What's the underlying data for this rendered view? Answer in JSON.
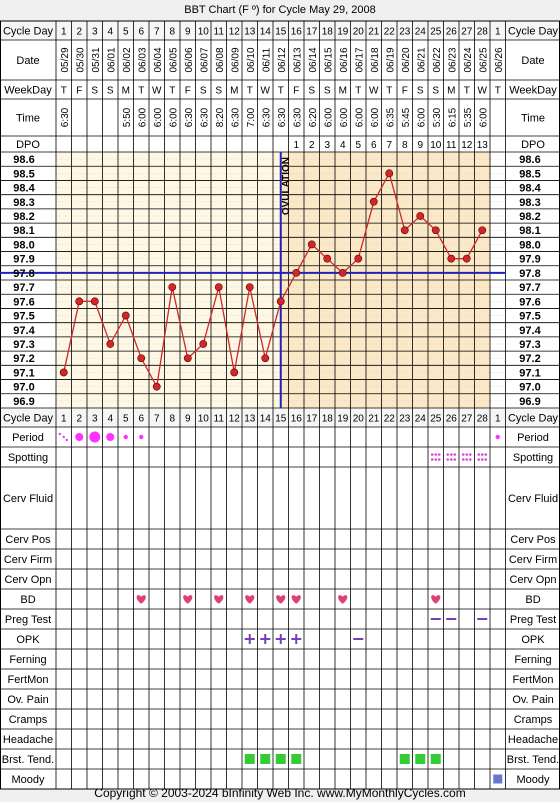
{
  "title": "BBT Chart (F º) for Cycle May 29, 2008",
  "footer": "Copyright © 2003-2024 bInfinity Web Inc.    www.MyMonthlyCycles.com",
  "colors": {
    "bg": "#f0f0f0",
    "grid": "#000000",
    "preOvulation": "#fdf7e3",
    "postOvulation": "#fbe8c6",
    "line": "#d0282a",
    "coverline": "#2222bb",
    "ovulationLine": "#2222bb",
    "period": "#ff33ff",
    "spotting": "#dd44dd",
    "heart": "#e0407a",
    "preg": "#7a3fb8",
    "opk": "#7a3fb8",
    "green": "#33cc33",
    "moody": "#6677cc"
  },
  "labels": {
    "cycle_day": "Cycle Day",
    "date": "Date",
    "weekday": "WeekDay",
    "time": "Time",
    "dpo": "DPO",
    "ovulation": "OVULATION",
    "period": "Period",
    "spotting": "Spotting",
    "cerv_fluid": "Cerv Fluid",
    "cerv_pos": "Cerv Pos",
    "cerv_firm": "Cerv Firm",
    "cerv_opn": "Cerv Opn",
    "bd": "BD",
    "preg_test": "Preg Test",
    "opk": "OPK",
    "ferning": "Ferning",
    "fertmon": "FertMon",
    "ov_pain": "Ov. Pain",
    "cramps": "Cramps",
    "headache": "Headache",
    "brst_tend": "Brst. Tend.",
    "moody": "Moody"
  },
  "cycle_days": [
    1,
    2,
    3,
    4,
    5,
    6,
    7,
    8,
    9,
    10,
    11,
    12,
    13,
    14,
    15,
    16,
    17,
    18,
    19,
    20,
    21,
    22,
    23,
    24,
    25,
    26,
    27,
    28,
    1
  ],
  "dates": [
    "05/29",
    "05/30",
    "05/31",
    "06/01",
    "06/02",
    "06/03",
    "06/04",
    "06/05",
    "06/06",
    "06/07",
    "06/08",
    "06/09",
    "06/10",
    "06/11",
    "06/12",
    "06/13",
    "06/14",
    "06/15",
    "06/16",
    "06/17",
    "06/18",
    "06/19",
    "06/20",
    "06/21",
    "06/22",
    "06/23",
    "06/24",
    "06/25",
    "06/26"
  ],
  "weekdays": [
    "T",
    "F",
    "S",
    "S",
    "M",
    "T",
    "W",
    "T",
    "F",
    "S",
    "S",
    "M",
    "T",
    "W",
    "T",
    "F",
    "S",
    "S",
    "M",
    "T",
    "W",
    "T",
    "F",
    "S",
    "S",
    "M",
    "T",
    "W",
    "T"
  ],
  "times": [
    "6:30",
    "",
    "",
    "",
    "5:50",
    "6:00",
    "6:00",
    "6:00",
    "6:30",
    "6:30",
    "8:20",
    "6:30",
    "7:00",
    "6:30",
    "6:30",
    "6:30",
    "6:20",
    "6:00",
    "6:00",
    "6:00",
    "6:00",
    "6:35",
    "5:45",
    "6:00",
    "5:30",
    "6:15",
    "5:35",
    "6:00",
    ""
  ],
  "dpo": [
    "",
    "",
    "",
    "",
    "",
    "",
    "",
    "",
    "",
    "",
    "",
    "",
    "",
    "",
    "",
    "1",
    "2",
    "3",
    "4",
    "5",
    "6",
    "7",
    "8",
    "9",
    "10",
    "11",
    "12",
    "13",
    ""
  ],
  "temp_axis": [
    "98.6",
    "98.5",
    "98.4",
    "98.3",
    "98.2",
    "98.1",
    "98.0",
    "97.9",
    "97.8",
    "97.7",
    "97.6",
    "97.5",
    "97.4",
    "97.3",
    "97.2",
    "97.1",
    "97.0",
    "96.9"
  ],
  "chart_data": {
    "type": "line",
    "title": "BBT Chart (F º) for Cycle May 29, 2008",
    "xlabel": "Cycle Day",
    "ylabel": "",
    "ylim": [
      96.9,
      98.6
    ],
    "x": [
      1,
      2,
      3,
      4,
      5,
      6,
      7,
      8,
      9,
      10,
      11,
      12,
      13,
      14,
      15,
      16,
      17,
      18,
      19,
      20,
      21,
      22,
      23,
      24,
      25,
      26,
      27,
      28
    ],
    "series": [
      {
        "values": [
          97.1,
          97.6,
          97.6,
          97.3,
          97.5,
          97.2,
          97.0,
          97.7,
          97.2,
          97.3,
          97.7,
          97.1,
          97.7,
          97.2,
          97.6,
          97.8,
          98.0,
          97.9,
          97.8,
          97.9,
          98.3,
          98.5,
          98.1,
          98.2,
          98.1,
          97.9,
          97.9,
          98.1
        ]
      }
    ],
    "coverline": 97.8,
    "ovulation_day": 15,
    "grid": true
  },
  "rows": {
    "period": [
      {
        "day": 1,
        "type": "dots"
      },
      {
        "day": 2,
        "level": 2
      },
      {
        "day": 3,
        "level": 3
      },
      {
        "day": 4,
        "level": 2
      },
      {
        "day": 5,
        "level": 1
      },
      {
        "day": 6,
        "level": 1
      },
      {
        "day": 29,
        "level": 1
      }
    ],
    "spotting_days": [
      25,
      26,
      27,
      28
    ],
    "bd_days": [
      6,
      9,
      11,
      13,
      15,
      16,
      19,
      25
    ],
    "preg_days": [
      25,
      26,
      28
    ],
    "opk_plus_days": [
      13,
      14,
      15,
      16
    ],
    "opk_minus_days": [
      20
    ],
    "brst_days": [
      13,
      14,
      15,
      16,
      23,
      24,
      25
    ],
    "moody_days": [
      29
    ]
  }
}
